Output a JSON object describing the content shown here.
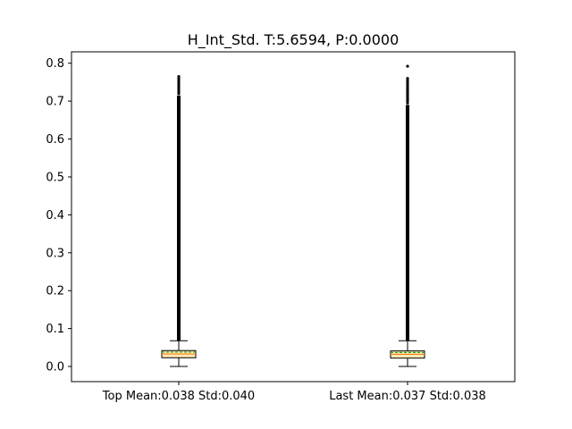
{
  "chart_data": {
    "type": "box",
    "title": "H_Int_Std. T:5.6594, P:0.0000",
    "xlabel": "",
    "ylabel": "",
    "categories": [
      "Top Mean:0.038 Std:0.040",
      "Last Mean:0.037 Std:0.038"
    ],
    "ylim": [
      -0.04,
      0.83
    ],
    "yticks": [
      0.0,
      0.1,
      0.2,
      0.3,
      0.4,
      0.5,
      0.6,
      0.7,
      0.8
    ],
    "ytick_labels": [
      "0.0",
      "0.1",
      "0.2",
      "0.3",
      "0.4",
      "0.5",
      "0.6",
      "0.7",
      "0.8"
    ],
    "grid": false,
    "showmeans": true,
    "meanline": true,
    "boxes": [
      {
        "label": "Top Mean:0.038 Std:0.040",
        "whisker_low": 0.0,
        "q1": 0.023,
        "median": 0.033,
        "mean": 0.038,
        "q3": 0.042,
        "whisker_high": 0.068,
        "outlier_range": [
          0.068,
          0.715
        ],
        "outliers_sparse": [
          0.72,
          0.725,
          0.73,
          0.735,
          0.74,
          0.745,
          0.75,
          0.755,
          0.76,
          0.765
        ]
      },
      {
        "label": "Last Mean:0.037 Std:0.038",
        "whisker_low": 0.0,
        "q1": 0.022,
        "median": 0.032,
        "mean": 0.037,
        "q3": 0.041,
        "whisker_high": 0.068,
        "outlier_range": [
          0.068,
          0.69
        ],
        "outliers_sparse": [
          0.695,
          0.7,
          0.705,
          0.71,
          0.715,
          0.72,
          0.725,
          0.73,
          0.735,
          0.74,
          0.745,
          0.75,
          0.755,
          0.76,
          0.792
        ]
      }
    ],
    "colors": {
      "box_fill": "#fbe9b7",
      "median": "#ff7f0e",
      "mean": "#2ca02c",
      "stroke": "#000000",
      "background": "#ffffff"
    }
  }
}
